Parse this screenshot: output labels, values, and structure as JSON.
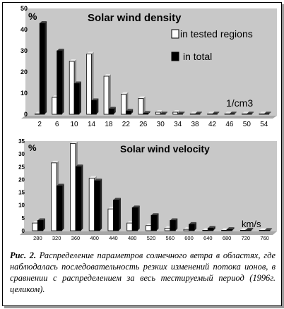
{
  "chart_data": [
    {
      "type": "bar",
      "title": "Solar wind density",
      "ylabel": "%",
      "unit": "1/cm3",
      "ylim": [
        0,
        50
      ],
      "yticks": [
        0,
        10,
        20,
        30,
        40,
        50
      ],
      "categories": [
        "2",
        "6",
        "10",
        "14",
        "18",
        "22",
        "26",
        "30",
        "34",
        "38",
        "42",
        "46",
        "50",
        "54"
      ],
      "series": [
        {
          "name": "in tested regions",
          "color": "#ffffff",
          "values": [
            0,
            8,
            25,
            28.5,
            18,
            9.5,
            7.5,
            1,
            1,
            0,
            0,
            0,
            0,
            0
          ]
        },
        {
          "name": "in total",
          "color": "#000000",
          "values": [
            43,
            30,
            14.5,
            6.5,
            2.5,
            1.5,
            0.5,
            0,
            0,
            0,
            0,
            0,
            0,
            0
          ]
        }
      ],
      "legend": "top-right",
      "grid": false
    },
    {
      "type": "bar",
      "title": "Solar wind velocity",
      "ylabel": "%",
      "unit": "km/s",
      "ylim": [
        0,
        35
      ],
      "yticks": [
        0,
        5,
        10,
        15,
        20,
        25,
        30,
        35
      ],
      "categories": [
        "280",
        "320",
        "360",
        "400",
        "440",
        "480",
        "520",
        "560",
        "600",
        "640",
        "680",
        "720",
        "760"
      ],
      "series": [
        {
          "name": "in tested regions",
          "color": "#ffffff",
          "values": [
            3,
            26.5,
            34,
            20.5,
            8.5,
            3,
            2,
            1,
            0.5,
            0,
            0,
            0,
            0
          ]
        },
        {
          "name": "in total",
          "color": "#000000",
          "values": [
            4,
            17.5,
            25,
            19.5,
            12,
            9,
            6,
            4,
            2.5,
            1,
            0.5,
            0.3,
            0
          ]
        }
      ],
      "grid": false
    }
  ],
  "caption": {
    "label": "Рис. 2.",
    "text": " Распределение параметров солнечного ветра в областях, где наблюдалась последовательность резких изменений потока ионов, в сравнении с распределением за весь тестируемый период (1996г. целиком)."
  },
  "colors": {
    "plot_bg": "#c8c8c8",
    "floor": "#a8a8a8",
    "text": "#000000"
  }
}
